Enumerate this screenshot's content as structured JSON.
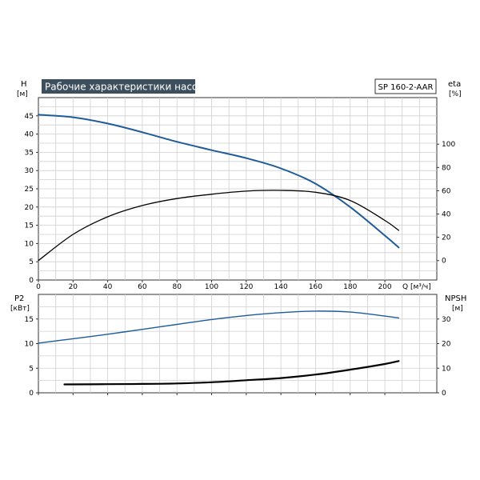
{
  "chart_data": [
    {
      "type": "line",
      "title": "Рабочие характеристики насоса",
      "model_label": "SP 160-2-AAR",
      "ylabel_left": "H",
      "ylabel_left_unit": "[м]",
      "ylabel_right": "eta",
      "ylabel_right_unit": "[%]",
      "xlabel": "Q [м³/ч]",
      "xlim": [
        0,
        230
      ],
      "ylim_left": [
        0,
        50
      ],
      "ylim_right": [
        -16.67,
        140
      ],
      "x_ticks": [
        0,
        20,
        40,
        60,
        80,
        100,
        120,
        140,
        160,
        180,
        200
      ],
      "y_ticks_left": [
        0,
        5,
        10,
        15,
        20,
        25,
        30,
        35,
        40,
        45
      ],
      "y_ticks_right": [
        0,
        20,
        40,
        60,
        80,
        100
      ],
      "grid": true,
      "series": [
        {
          "axis": "left",
          "color": "#1f5c99",
          "x": [
            0,
            20,
            40,
            60,
            80,
            100,
            120,
            140,
            160,
            180,
            200,
            208
          ],
          "y": [
            45.3,
            44.6,
            42.9,
            40.5,
            37.9,
            35.6,
            33.4,
            30.6,
            26.4,
            20.0,
            12.2,
            8.9
          ]
        },
        {
          "axis": "right",
          "color": "#000000",
          "x": [
            0,
            20,
            40,
            60,
            80,
            100,
            120,
            140,
            160,
            180,
            200,
            208
          ],
          "y": [
            0,
            22.5,
            37.6,
            47.3,
            53.3,
            57.0,
            59.7,
            60.3,
            58.7,
            51.6,
            34.5,
            26.0
          ]
        }
      ]
    },
    {
      "type": "line",
      "ylabel_left": "P2",
      "ylabel_left_unit": "[кВт]",
      "ylabel_right": "NPSH",
      "ylabel_right_unit": "[м]",
      "xlim": [
        0,
        230
      ],
      "ylim_left": [
        0,
        20
      ],
      "ylim_right": [
        0,
        40
      ],
      "y_ticks_left": [
        0,
        5,
        10,
        15
      ],
      "y_ticks_right": [
        0,
        10,
        20,
        30
      ],
      "grid": true,
      "series": [
        {
          "axis": "left",
          "color": "#1f5c99",
          "x": [
            0,
            20,
            40,
            60,
            80,
            100,
            120,
            140,
            160,
            180,
            200,
            208
          ],
          "y": [
            10.1,
            11.0,
            11.9,
            12.9,
            13.9,
            14.9,
            15.7,
            16.3,
            16.6,
            16.4,
            15.6,
            15.2
          ]
        },
        {
          "axis": "right",
          "color": "#000000",
          "x": [
            15,
            40,
            60,
            80,
            100,
            120,
            140,
            160,
            180,
            200,
            208
          ],
          "y": [
            3.4,
            3.5,
            3.6,
            3.8,
            4.3,
            5.1,
            6.0,
            7.4,
            9.4,
            11.7,
            12.9
          ]
        }
      ]
    }
  ]
}
